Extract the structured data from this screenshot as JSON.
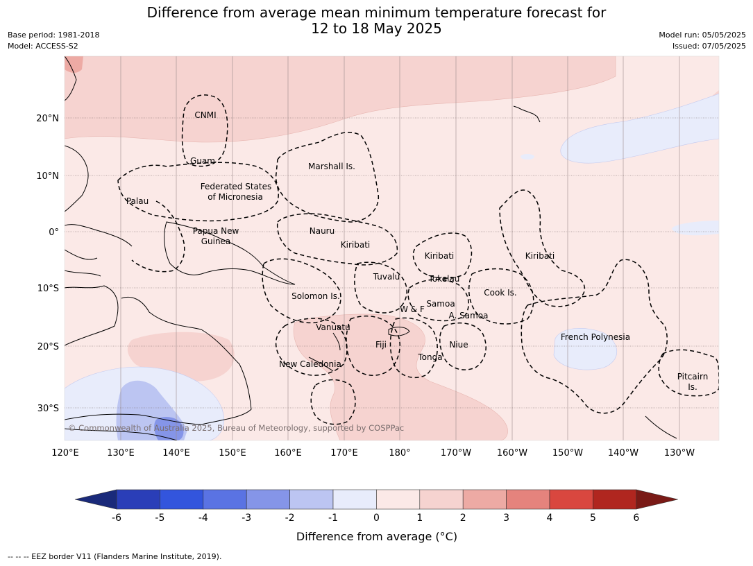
{
  "title_line1": "Difference from average mean minimum temperature forecast for",
  "title_line2": "12 to 18 May 2025",
  "base_period": "Base period: 1981-2018",
  "model": "Model: ACCESS-S2",
  "model_run": "Model run: 05/05/2025",
  "issued": "Issued: 07/05/2025",
  "lon_labels": [
    "120°E",
    "130°E",
    "140°E",
    "150°E",
    "160°E",
    "170°E",
    "180°",
    "170°W",
    "160°W",
    "150°W",
    "140°W",
    "130°W"
  ],
  "lat_labels": [
    "20°N",
    "10°N",
    "0°",
    "10°S",
    "20°S",
    "30°S"
  ],
  "regions": [
    "CNMI",
    "Guam",
    "Marshall Is.",
    "Federated States",
    "of Micronesia",
    "Palau",
    "Papua New",
    "Guinea",
    "Nauru",
    "Kiribati",
    "Kiribati",
    "Kiribati",
    "Tuvalu",
    "Tokelau",
    "Cook Is.",
    "Solomon Is.",
    "W & F",
    "Samoa",
    "A. Samoa",
    "Vanuatu",
    "Fiji",
    "Niue",
    "Tonga",
    "New Caledonia",
    "French Polynesia",
    "Pitcairn",
    "Is."
  ],
  "copyright": "© Commonwealth of Australia 2025, Bureau of Meteorology, supported by COSPPac",
  "colorbar": {
    "ticks": [
      "-6",
      "-5",
      "-4",
      "-3",
      "-2",
      "-1",
      "0",
      "1",
      "2",
      "3",
      "4",
      "5",
      "6"
    ],
    "colors": [
      "#1a2a7a",
      "#2a3eb8",
      "#3355dd",
      "#5a73e3",
      "#8595e8",
      "#bcc5f2",
      "#e8ecfb",
      "#fbe9e7",
      "#f6d3d0",
      "#edaaa4",
      "#e5837d",
      "#d9473f",
      "#b0261f",
      "#7a1a16"
    ],
    "label": "Difference from average (°C)"
  },
  "legend_note": "-- -- -- EEZ border V11 (Flanders Marine Institute, 2019)."
}
